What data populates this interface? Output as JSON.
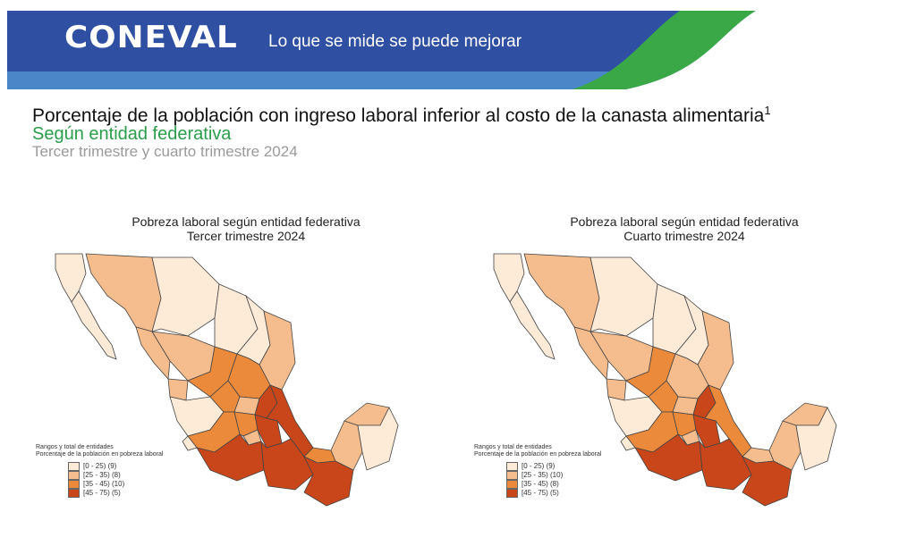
{
  "header": {
    "logo_text": "CONEVAL",
    "slogan": "Lo que se mide se puede mejorar",
    "colors": {
      "blue": "#2f4fa3",
      "light_blue": "#4a86c8",
      "green": "#3aa847"
    }
  },
  "page": {
    "title": "Porcentaje de la población con ingreso laboral inferior al costo de la canasta alimentaria",
    "title_note": "1",
    "subtitle": "Según entidad federativa",
    "period": "Tercer trimestre y cuarto trimestre 2024"
  },
  "maps": [
    {
      "title_line1": "Pobreza laboral según entidad federativa",
      "title_line2": "Tercer trimestre 2024",
      "legend_heading1": "Rangos y total de entidades",
      "legend_heading2": "Porcentaje de la población en pobreza laboral",
      "legend": [
        {
          "label": "[0 - 25) (9)",
          "color": "#fdebd8"
        },
        {
          "label": "[25 - 35) (8)",
          "color": "#f5bd8d"
        },
        {
          "label": "[35 - 45) (10)",
          "color": "#ec8a3c"
        },
        {
          "label": "[45 - 75) (5)",
          "color": "#c8461a"
        }
      ]
    },
    {
      "title_line1": "Pobreza laboral según entidad federativa",
      "title_line2": "Cuarto trimestre 2024",
      "legend_heading1": "Rangos y total de entidades",
      "legend_heading2": "Porcentaje de la población en pobreza laboral",
      "legend": [
        {
          "label": "[0 - 25) (9)",
          "color": "#fdebd8"
        },
        {
          "label": "[25 - 35) (10)",
          "color": "#f5bd8d"
        },
        {
          "label": "[35 - 45) (8)",
          "color": "#ec8a3c"
        },
        {
          "label": "[45 - 75) (5)",
          "color": "#c8461a"
        }
      ]
    }
  ]
}
